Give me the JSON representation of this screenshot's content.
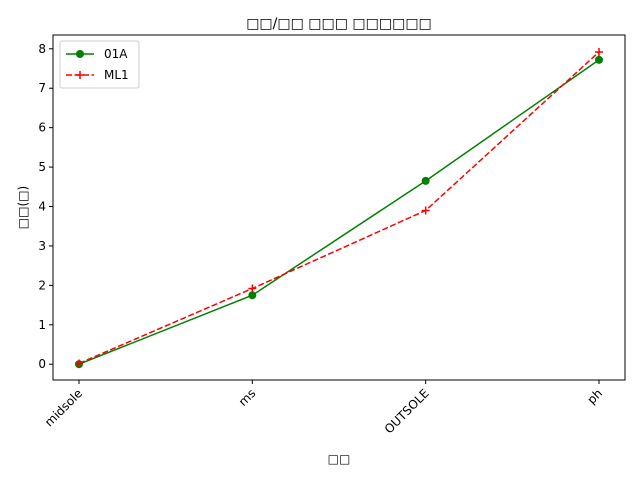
{
  "chart_data": {
    "type": "line",
    "title": "□□/□□ □□□ □□□□□□",
    "xlabel": "□□",
    "ylabel": "□□(□)",
    "categories": [
      "midsole",
      "ms",
      "OUTSOLE",
      "ph"
    ],
    "ylim": [
      -0.4,
      8.35
    ],
    "yticks": [
      0,
      1,
      2,
      3,
      4,
      5,
      6,
      7,
      8
    ],
    "grid": false,
    "legend_position": "upper-left",
    "series": [
      {
        "name": "01A",
        "values": [
          0.0,
          1.75,
          4.65,
          7.72
        ],
        "color": "#008000",
        "line_style": "solid",
        "marker": "circle"
      },
      {
        "name": "ML1",
        "values": [
          0.02,
          1.92,
          3.9,
          7.92
        ],
        "color": "#ff0000",
        "line_style": "dashed",
        "marker": "plus"
      }
    ]
  }
}
